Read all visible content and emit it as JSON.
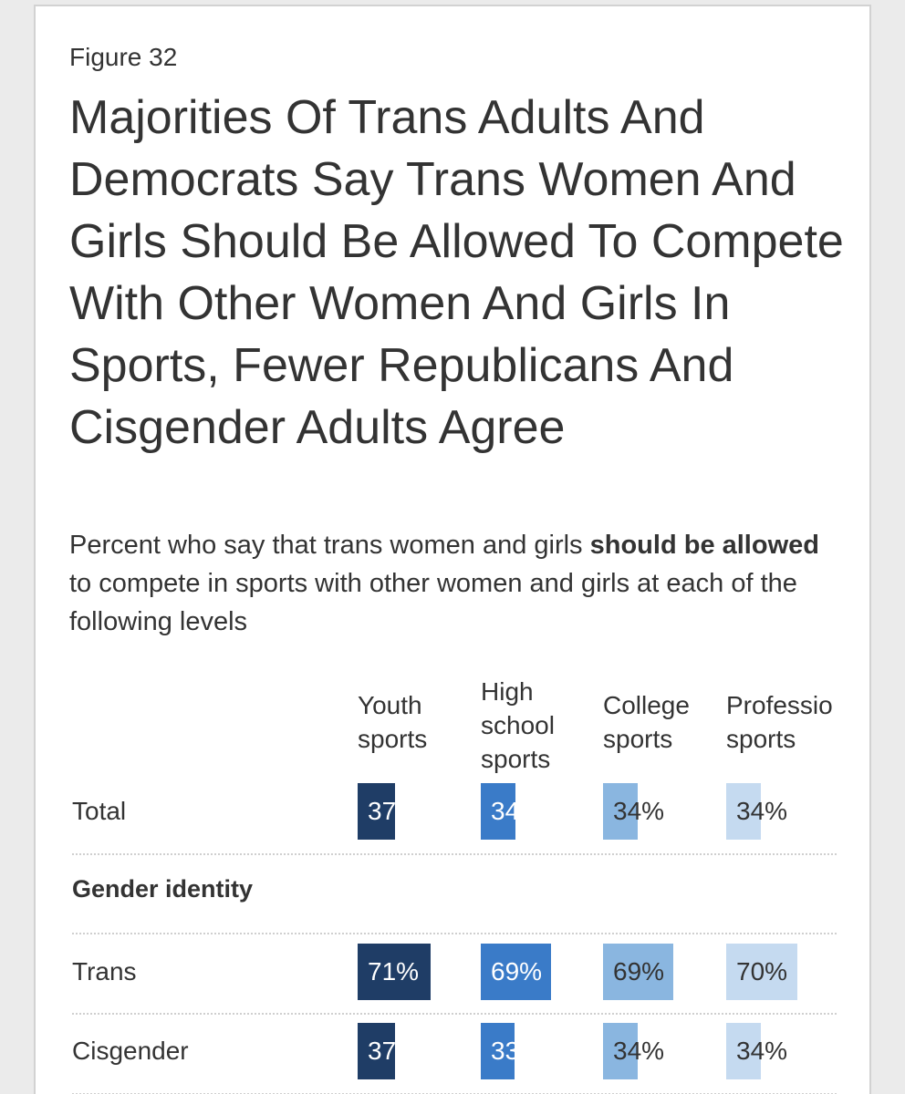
{
  "figure_label": "Figure 32",
  "title": "Majorities Of Trans Adults And Democrats Say Trans Women And Girls Should Be Allowed To Compete With Other Women And Girls In Sports, Fewer Republicans And Cisgender Adults Agree",
  "subtitle": {
    "before": "Percent who say that trans women and girls ",
    "bold": "should be allowed",
    "after": " to compete in sports with other women and girls at each of the following levels"
  },
  "chart_data": {
    "type": "bar",
    "categories": [
      "Youth sports",
      "High school sports",
      "College sports",
      "Professional sports"
    ],
    "category_headers_visible": [
      "Youth\nsports",
      "High\nschool\nsports",
      "College\nsports",
      "Professio\nsports"
    ],
    "colors": [
      "#1f3d66",
      "#3a7bc8",
      "#8ab6e0",
      "#c5daf0"
    ],
    "value_text_colors": [
      "#ffffff",
      "#ffffff",
      "#333333",
      "#333333"
    ],
    "value_max": 100,
    "rows": [
      {
        "label": "Total",
        "values": [
          37,
          34,
          34,
          34
        ],
        "shown": [
          "37",
          "34",
          "34%",
          "34%"
        ]
      },
      {
        "group": "Gender identity"
      },
      {
        "label": "Trans",
        "values": [
          71,
          69,
          69,
          70
        ],
        "shown": [
          "71%",
          "69%",
          "69%",
          "70%"
        ]
      },
      {
        "label": "Cisgender",
        "values": [
          37,
          33,
          34,
          34
        ],
        "shown": [
          "37",
          "33",
          "34%",
          "34%"
        ]
      }
    ]
  }
}
